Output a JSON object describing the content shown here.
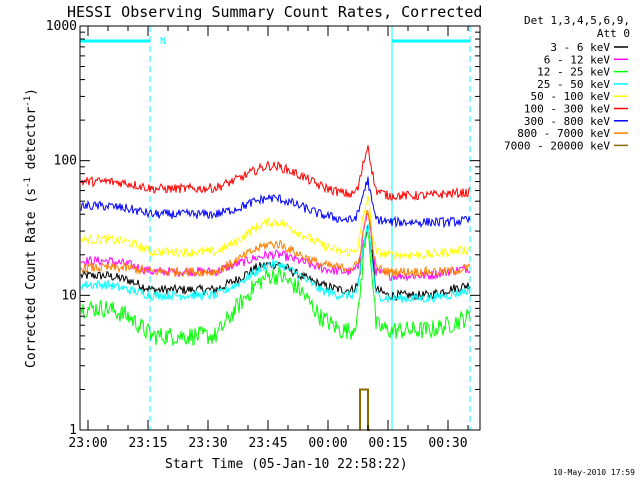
{
  "chart_data": {
    "type": "line",
    "title": "HESSI Observing Summary Count Rates, Corrected",
    "xlabel": "Start Time (05-Jan-10 22:58:22)",
    "ylabel_main": "Corrected Count Rate (s",
    "ylabel_sup1": "-1",
    "ylabel_mid": " detector",
    "ylabel_sup2": "-1",
    "ylabel_end": ")",
    "y_scale": "log",
    "ylim": [
      1,
      1000
    ],
    "xlim_min": [
      -2,
      98
    ],
    "y_ticks": [
      "1",
      "10",
      "100",
      "1000"
    ],
    "x_ticks": [
      {
        "min": 0,
        "label": "23:00"
      },
      {
        "min": 15,
        "label": "23:15"
      },
      {
        "min": 30,
        "label": "23:30"
      },
      {
        "min": 45,
        "label": "23:45"
      },
      {
        "min": 60,
        "label": "00:00"
      },
      {
        "min": 75,
        "label": "00:15"
      },
      {
        "min": 90,
        "label": "00:30"
      }
    ],
    "legend": {
      "header1": "Det 1,3,4,5,6,9,",
      "header2": "Att 0",
      "placement": "right"
    },
    "attenuator_marker": "N",
    "night_intervals": [
      [
        -2,
        15.5
      ],
      [
        76,
        95.5
      ]
    ],
    "dashed_markers": [
      15.5,
      95.5
    ],
    "solid_markers": [
      -2,
      76
    ],
    "footer_date": "10-May-2010 17:59",
    "series": [
      {
        "name": "3 - 6 keV",
        "color": "#000000",
        "x": [
          -2,
          5,
          10,
          16,
          20,
          28,
          32,
          37,
          42,
          45,
          48,
          53,
          58,
          63,
          66,
          67.5,
          69,
          70,
          71,
          72,
          75,
          80,
          85,
          90,
          95.5
        ],
        "y": [
          14,
          14,
          13,
          11,
          11,
          11,
          11,
          13,
          16,
          17,
          17,
          14,
          12,
          11,
          11,
          12,
          25,
          33,
          20,
          11,
          10,
          10,
          10,
          11,
          12
        ]
      },
      {
        "name": "6 - 12 keV",
        "color": "#ff00ff",
        "x": [
          -2,
          5,
          10,
          16,
          20,
          28,
          32,
          37,
          42,
          45,
          48,
          53,
          58,
          63,
          66,
          67.5,
          69,
          70,
          71,
          72,
          75,
          80,
          85,
          90,
          95.5
        ],
        "y": [
          18,
          18,
          17,
          15,
          15,
          15,
          15,
          17,
          19,
          20,
          20,
          18,
          16,
          15,
          15,
          16,
          32,
          42,
          24,
          15,
          14,
          14,
          14,
          15,
          16
        ]
      },
      {
        "name": "12 - 25 keV",
        "color": "#00ff00",
        "x": [
          -2,
          5,
          10,
          16,
          20,
          28,
          32,
          37,
          42,
          45,
          48,
          53,
          58,
          63,
          66,
          67.5,
          69,
          70,
          71,
          72,
          75,
          80,
          85,
          90,
          95.5
        ],
        "y": [
          8,
          8,
          7,
          5,
          5,
          5,
          5,
          8,
          12,
          14,
          14,
          11,
          7,
          5.5,
          5.5,
          7,
          22,
          32,
          15,
          6,
          5.5,
          5.5,
          5.5,
          6,
          7
        ]
      },
      {
        "name": "25 - 50 keV",
        "color": "#00ffff",
        "x": [
          -2,
          5,
          10,
          16,
          20,
          28,
          32,
          37,
          42,
          45,
          48,
          53,
          58,
          63,
          66,
          67.5,
          69,
          70,
          71,
          72,
          75,
          80,
          85,
          90,
          95.5
        ],
        "y": [
          12,
          12,
          11,
          10,
          10,
          10,
          10,
          12,
          15,
          17,
          17,
          14,
          11,
          10,
          10,
          11,
          25,
          35,
          18,
          10,
          9.5,
          9.5,
          9.5,
          10,
          11
        ]
      },
      {
        "name": "50 - 100 keV",
        "color": "#ffff00",
        "x": [
          -2,
          5,
          10,
          16,
          20,
          28,
          32,
          37,
          42,
          45,
          48,
          53,
          58,
          63,
          66,
          67.5,
          69,
          70,
          71,
          72,
          75,
          80,
          85,
          90,
          95.5
        ],
        "y": [
          26,
          26,
          25,
          21,
          21,
          21,
          21,
          25,
          32,
          35,
          35,
          29,
          24,
          21,
          21,
          23,
          40,
          55,
          30,
          21,
          20,
          20,
          20,
          21,
          22
        ]
      },
      {
        "name": "100 - 300 keV",
        "color": "#ff0000",
        "x": [
          -2,
          5,
          10,
          16,
          20,
          28,
          32,
          37,
          42,
          45,
          48,
          53,
          58,
          63,
          66,
          67.5,
          69,
          70,
          71,
          72,
          75,
          80,
          85,
          90,
          95.5
        ],
        "y": [
          70,
          70,
          68,
          62,
          62,
          62,
          63,
          72,
          85,
          92,
          90,
          78,
          65,
          58,
          56,
          62,
          100,
          130,
          85,
          60,
          55,
          55,
          55,
          57,
          58
        ]
      },
      {
        "name": "300 - 800 keV",
        "color": "#0000ff",
        "x": [
          -2,
          5,
          10,
          16,
          20,
          28,
          32,
          37,
          42,
          45,
          48,
          53,
          58,
          63,
          66,
          67.5,
          69,
          70,
          71,
          72,
          75,
          80,
          85,
          90,
          95.5
        ],
        "y": [
          46,
          46,
          44,
          40,
          40,
          40,
          40,
          44,
          50,
          53,
          52,
          46,
          40,
          37,
          36,
          40,
          60,
          72,
          48,
          37,
          35,
          35,
          35,
          35,
          36
        ]
      },
      {
        "name": "800 - 7000 keV",
        "color": "#ff8000",
        "x": [
          -2,
          5,
          10,
          16,
          20,
          28,
          32,
          37,
          42,
          45,
          48,
          53,
          58,
          63,
          66,
          67.5,
          69,
          70,
          71,
          72,
          75,
          80,
          85,
          90,
          95.5
        ],
        "y": [
          16,
          16,
          16,
          15,
          15,
          15,
          15,
          18,
          22,
          24,
          24,
          20,
          17,
          16,
          16,
          17,
          32,
          45,
          25,
          16,
          15,
          15,
          15,
          15,
          16
        ]
      },
      {
        "name": "7000 - 20000 keV",
        "color": "#8b6b00",
        "x": [
          68,
          68,
          70,
          70,
          70.5
        ],
        "y": [
          1,
          2,
          2,
          1,
          1
        ]
      }
    ]
  }
}
